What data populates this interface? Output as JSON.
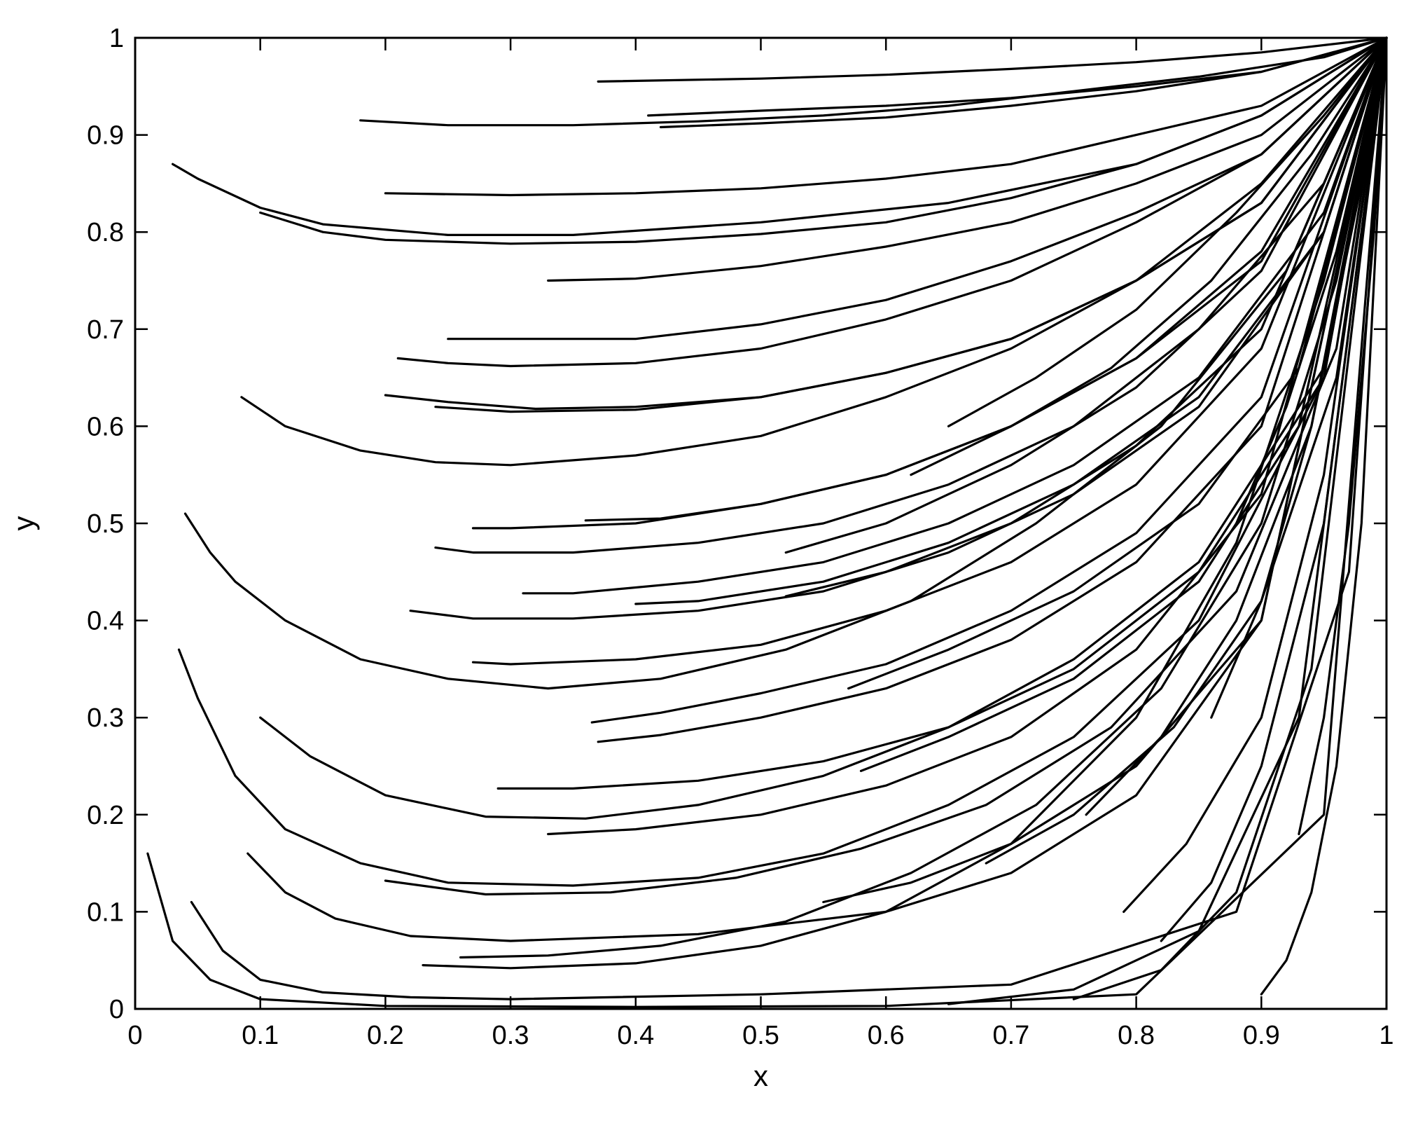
{
  "chart_data": {
    "type": "line",
    "title": "",
    "xlabel": "x",
    "ylabel": "y",
    "xlim": [
      0,
      1
    ],
    "ylim": [
      0,
      1
    ],
    "x_ticks": [
      "0",
      "0.1",
      "0.2",
      "0.3",
      "0.4",
      "0.5",
      "0.6",
      "0.7",
      "0.8",
      "0.9",
      "1"
    ],
    "y_ticks": [
      "0",
      "0.1",
      "0.2",
      "0.3",
      "0.4",
      "0.5",
      "0.6",
      "0.7",
      "0.8",
      "0.9",
      "1"
    ],
    "grid": false,
    "legend": "none",
    "line_color": "#000000",
    "series": [
      {
        "x": [
          0.01,
          0.03,
          0.06,
          0.1,
          0.2,
          0.4,
          0.6,
          0.8,
          0.95,
          1.0
        ],
        "y": [
          0.16,
          0.07,
          0.03,
          0.01,
          0.003,
          0.002,
          0.003,
          0.015,
          0.2,
          1.0
        ]
      },
      {
        "x": [
          0.045,
          0.07,
          0.1,
          0.15,
          0.22,
          0.3,
          0.5,
          0.7,
          0.88,
          0.97,
          1.0
        ],
        "y": [
          0.11,
          0.06,
          0.03,
          0.017,
          0.012,
          0.01,
          0.015,
          0.025,
          0.1,
          0.45,
          1.0
        ]
      },
      {
        "x": [
          0.09,
          0.12,
          0.16,
          0.22,
          0.3,
          0.45,
          0.6,
          0.7,
          0.8,
          0.9,
          1.0
        ],
        "y": [
          0.16,
          0.12,
          0.093,
          0.075,
          0.07,
          0.077,
          0.1,
          0.14,
          0.22,
          0.4,
          1.0
        ]
      },
      {
        "x": [
          0.035,
          0.05,
          0.08,
          0.12,
          0.18,
          0.25,
          0.35,
          0.45,
          0.55,
          0.65,
          0.75,
          0.85,
          0.95,
          1.0
        ],
        "y": [
          0.37,
          0.32,
          0.24,
          0.185,
          0.15,
          0.13,
          0.127,
          0.135,
          0.16,
          0.21,
          0.28,
          0.4,
          0.65,
          1.0
        ]
      },
      {
        "x": [
          0.1,
          0.14,
          0.2,
          0.28,
          0.36,
          0.45,
          0.55,
          0.65,
          0.75,
          0.85,
          0.95,
          1.0
        ],
        "y": [
          0.3,
          0.26,
          0.22,
          0.198,
          0.196,
          0.21,
          0.24,
          0.29,
          0.36,
          0.46,
          0.66,
          1.0
        ]
      },
      {
        "x": [
          0.04,
          0.06,
          0.08,
          0.12,
          0.18,
          0.25,
          0.33,
          0.42,
          0.52,
          0.62,
          0.72,
          0.82,
          0.92,
          1.0
        ],
        "y": [
          0.51,
          0.47,
          0.44,
          0.4,
          0.36,
          0.34,
          0.33,
          0.34,
          0.37,
          0.42,
          0.5,
          0.6,
          0.76,
          1.0
        ]
      },
      {
        "x": [
          0.085,
          0.12,
          0.18,
          0.24,
          0.3,
          0.4,
          0.5,
          0.6,
          0.7,
          0.8,
          0.9,
          1.0
        ],
        "y": [
          0.63,
          0.6,
          0.575,
          0.563,
          0.56,
          0.57,
          0.59,
          0.63,
          0.68,
          0.75,
          0.85,
          1.0
        ]
      },
      {
        "x": [
          0.03,
          0.05,
          0.1,
          0.15,
          0.25,
          0.35,
          0.5,
          0.65,
          0.8,
          0.9,
          1.0
        ],
        "y": [
          0.87,
          0.855,
          0.825,
          0.808,
          0.797,
          0.797,
          0.81,
          0.83,
          0.87,
          0.92,
          1.0
        ]
      },
      {
        "x": [
          0.1,
          0.15,
          0.2,
          0.3,
          0.4,
          0.5,
          0.6,
          0.7,
          0.8,
          0.9,
          1.0
        ],
        "y": [
          0.82,
          0.8,
          0.792,
          0.788,
          0.79,
          0.798,
          0.81,
          0.835,
          0.87,
          0.92,
          1.0
        ]
      },
      {
        "x": [
          0.18,
          0.25,
          0.35,
          0.45,
          0.55,
          0.65,
          0.75,
          0.85,
          0.95,
          1.0
        ],
        "y": [
          0.915,
          0.91,
          0.91,
          0.914,
          0.92,
          0.93,
          0.945,
          0.96,
          0.98,
          1.0
        ]
      },
      {
        "x": [
          0.37,
          0.5,
          0.6,
          0.7,
          0.8,
          0.9,
          1.0
        ],
        "y": [
          0.955,
          0.958,
          0.962,
          0.968,
          0.975,
          0.985,
          1.0
        ]
      },
      {
        "x": [
          0.41,
          0.5,
          0.6,
          0.7,
          0.8,
          0.9,
          1.0
        ],
        "y": [
          0.92,
          0.925,
          0.93,
          0.938,
          0.95,
          0.965,
          1.0
        ]
      },
      {
        "x": [
          0.42,
          0.5,
          0.6,
          0.7,
          0.8,
          0.9,
          1.0
        ],
        "y": [
          0.908,
          0.912,
          0.918,
          0.93,
          0.945,
          0.965,
          1.0
        ]
      },
      {
        "x": [
          0.2,
          0.3,
          0.4,
          0.5,
          0.6,
          0.7,
          0.8,
          0.9,
          1.0
        ],
        "y": [
          0.84,
          0.838,
          0.84,
          0.845,
          0.855,
          0.87,
          0.9,
          0.93,
          1.0
        ]
      },
      {
        "x": [
          0.33,
          0.4,
          0.5,
          0.6,
          0.7,
          0.8,
          0.9,
          1.0
        ],
        "y": [
          0.75,
          0.752,
          0.765,
          0.785,
          0.81,
          0.85,
          0.9,
          1.0
        ]
      },
      {
        "x": [
          0.25,
          0.3,
          0.4,
          0.5,
          0.6,
          0.7,
          0.8,
          0.9,
          1.0
        ],
        "y": [
          0.69,
          0.69,
          0.69,
          0.705,
          0.73,
          0.77,
          0.82,
          0.88,
          1.0
        ]
      },
      {
        "x": [
          0.21,
          0.25,
          0.3,
          0.4,
          0.5,
          0.6,
          0.7,
          0.8,
          0.9,
          1.0
        ],
        "y": [
          0.67,
          0.665,
          0.662,
          0.665,
          0.68,
          0.71,
          0.75,
          0.81,
          0.88,
          1.0
        ]
      },
      {
        "x": [
          0.2,
          0.25,
          0.32,
          0.4,
          0.5,
          0.6,
          0.7,
          0.8,
          0.9,
          1.0
        ],
        "y": [
          0.632,
          0.625,
          0.618,
          0.62,
          0.63,
          0.655,
          0.69,
          0.75,
          0.83,
          1.0
        ]
      },
      {
        "x": [
          0.24,
          0.3,
          0.4,
          0.5,
          0.6,
          0.7,
          0.8,
          0.9,
          1.0
        ],
        "y": [
          0.62,
          0.615,
          0.617,
          0.63,
          0.655,
          0.69,
          0.75,
          0.83,
          1.0
        ]
      },
      {
        "x": [
          0.27,
          0.3,
          0.4,
          0.5,
          0.6,
          0.7,
          0.8,
          0.9,
          1.0
        ],
        "y": [
          0.495,
          0.495,
          0.5,
          0.52,
          0.55,
          0.6,
          0.67,
          0.77,
          1.0
        ]
      },
      {
        "x": [
          0.24,
          0.27,
          0.35,
          0.45,
          0.55,
          0.65,
          0.75,
          0.85,
          0.95,
          1.0
        ],
        "y": [
          0.475,
          0.47,
          0.47,
          0.48,
          0.5,
          0.54,
          0.6,
          0.7,
          0.85,
          1.0
        ]
      },
      {
        "x": [
          0.22,
          0.27,
          0.35,
          0.45,
          0.55,
          0.65,
          0.75,
          0.85,
          0.95,
          1.0
        ],
        "y": [
          0.41,
          0.402,
          0.402,
          0.41,
          0.43,
          0.47,
          0.53,
          0.62,
          0.8,
          1.0
        ]
      },
      {
        "x": [
          0.31,
          0.35,
          0.45,
          0.55,
          0.65,
          0.75,
          0.85,
          0.95,
          1.0
        ],
        "y": [
          0.428,
          0.428,
          0.44,
          0.46,
          0.5,
          0.56,
          0.65,
          0.82,
          1.0
        ]
      },
      {
        "x": [
          0.27,
          0.3,
          0.4,
          0.5,
          0.6,
          0.7,
          0.8,
          0.9,
          1.0
        ],
        "y": [
          0.357,
          0.355,
          0.36,
          0.375,
          0.41,
          0.46,
          0.54,
          0.68,
          1.0
        ]
      },
      {
        "x": [
          0.365,
          0.42,
          0.5,
          0.6,
          0.7,
          0.8,
          0.9,
          1.0
        ],
        "y": [
          0.295,
          0.305,
          0.325,
          0.355,
          0.41,
          0.49,
          0.63,
          1.0
        ]
      },
      {
        "x": [
          0.37,
          0.42,
          0.5,
          0.6,
          0.7,
          0.8,
          0.9,
          1.0
        ],
        "y": [
          0.275,
          0.282,
          0.3,
          0.33,
          0.38,
          0.46,
          0.6,
          1.0
        ]
      },
      {
        "x": [
          0.29,
          0.35,
          0.45,
          0.55,
          0.65,
          0.75,
          0.85,
          0.95,
          1.0
        ],
        "y": [
          0.227,
          0.227,
          0.235,
          0.255,
          0.29,
          0.35,
          0.45,
          0.65,
          1.0
        ]
      },
      {
        "x": [
          0.33,
          0.4,
          0.5,
          0.6,
          0.7,
          0.8,
          0.9,
          1.0
        ],
        "y": [
          0.18,
          0.185,
          0.2,
          0.23,
          0.28,
          0.37,
          0.53,
          1.0
        ]
      },
      {
        "x": [
          0.2,
          0.28,
          0.38,
          0.48,
          0.58,
          0.68,
          0.78,
          0.88,
          0.96,
          1.0
        ],
        "y": [
          0.132,
          0.118,
          0.12,
          0.135,
          0.165,
          0.21,
          0.29,
          0.43,
          0.68,
          1.0
        ]
      },
      {
        "x": [
          0.26,
          0.33,
          0.42,
          0.52,
          0.62,
          0.72,
          0.82,
          0.9,
          0.96,
          1.0
        ],
        "y": [
          0.053,
          0.055,
          0.065,
          0.09,
          0.14,
          0.21,
          0.33,
          0.5,
          0.75,
          1.0
        ]
      },
      {
        "x": [
          0.23,
          0.3,
          0.4,
          0.5,
          0.6,
          0.7,
          0.8,
          0.88,
          0.95,
          1.0
        ],
        "y": [
          0.045,
          0.042,
          0.047,
          0.065,
          0.1,
          0.17,
          0.3,
          0.48,
          0.75,
          1.0
        ]
      },
      {
        "x": [
          0.65,
          0.75,
          0.85,
          0.93,
          1.0
        ],
        "y": [
          0.005,
          0.02,
          0.08,
          0.3,
          1.0
        ]
      },
      {
        "x": [
          0.75,
          0.82,
          0.88,
          0.94,
          1.0
        ],
        "y": [
          0.01,
          0.04,
          0.12,
          0.35,
          1.0
        ]
      },
      {
        "x": [
          0.9,
          0.92,
          0.94,
          0.96,
          0.98,
          1.0
        ],
        "y": [
          0.015,
          0.05,
          0.12,
          0.25,
          0.5,
          1.0
        ]
      },
      {
        "x": [
          0.93,
          0.95,
          0.97,
          0.99,
          1.0
        ],
        "y": [
          0.18,
          0.3,
          0.5,
          0.8,
          1.0
        ]
      },
      {
        "x": [
          0.82,
          0.86,
          0.9,
          0.95,
          1.0
        ],
        "y": [
          0.07,
          0.13,
          0.25,
          0.5,
          1.0
        ]
      },
      {
        "x": [
          0.79,
          0.84,
          0.9,
          0.95,
          1.0
        ],
        "y": [
          0.1,
          0.17,
          0.3,
          0.55,
          1.0
        ]
      },
      {
        "x": [
          0.76,
          0.82,
          0.88,
          0.94,
          1.0
        ],
        "y": [
          0.2,
          0.28,
          0.4,
          0.6,
          1.0
        ]
      },
      {
        "x": [
          0.86,
          0.9,
          0.94,
          0.98,
          1.0
        ],
        "y": [
          0.3,
          0.42,
          0.6,
          0.85,
          1.0
        ]
      },
      {
        "x": [
          0.88,
          0.92,
          0.96,
          1.0
        ],
        "y": [
          0.5,
          0.62,
          0.78,
          1.0
        ]
      },
      {
        "x": [
          0.65,
          0.72,
          0.8,
          0.88,
          0.95,
          1.0
        ],
        "y": [
          0.6,
          0.65,
          0.72,
          0.82,
          0.92,
          1.0
        ]
      },
      {
        "x": [
          0.52,
          0.6,
          0.7,
          0.8,
          0.9,
          1.0
        ],
        "y": [
          0.47,
          0.5,
          0.56,
          0.64,
          0.76,
          1.0
        ]
      },
      {
        "x": [
          0.52,
          0.6,
          0.7,
          0.8,
          0.9,
          1.0
        ],
        "y": [
          0.425,
          0.45,
          0.5,
          0.58,
          0.7,
          1.0
        ]
      },
      {
        "x": [
          0.57,
          0.65,
          0.75,
          0.85,
          0.93,
          1.0
        ],
        "y": [
          0.33,
          0.37,
          0.43,
          0.52,
          0.66,
          1.0
        ]
      },
      {
        "x": [
          0.58,
          0.65,
          0.75,
          0.85,
          0.93,
          1.0
        ],
        "y": [
          0.245,
          0.28,
          0.34,
          0.44,
          0.6,
          1.0
        ]
      },
      {
        "x": [
          0.55,
          0.62,
          0.7,
          0.8,
          0.9,
          1.0
        ],
        "y": [
          0.11,
          0.13,
          0.17,
          0.25,
          0.4,
          1.0
        ]
      },
      {
        "x": [
          0.68,
          0.75,
          0.83,
          0.9,
          0.96,
          1.0
        ],
        "y": [
          0.15,
          0.2,
          0.29,
          0.42,
          0.65,
          1.0
        ]
      },
      {
        "x": [
          0.36,
          0.42,
          0.5,
          0.6,
          0.7,
          0.8,
          0.9,
          1.0
        ],
        "y": [
          0.503,
          0.505,
          0.52,
          0.55,
          0.6,
          0.67,
          0.78,
          1.0
        ]
      },
      {
        "x": [
          0.4,
          0.45,
          0.55,
          0.65,
          0.75,
          0.85,
          0.95,
          1.0
        ],
        "y": [
          0.417,
          0.42,
          0.44,
          0.48,
          0.54,
          0.63,
          0.8,
          1.0
        ]
      },
      {
        "x": [
          0.62,
          0.7,
          0.78,
          0.86,
          0.94,
          1.0
        ],
        "y": [
          0.55,
          0.6,
          0.66,
          0.75,
          0.88,
          1.0
        ]
      }
    ]
  }
}
